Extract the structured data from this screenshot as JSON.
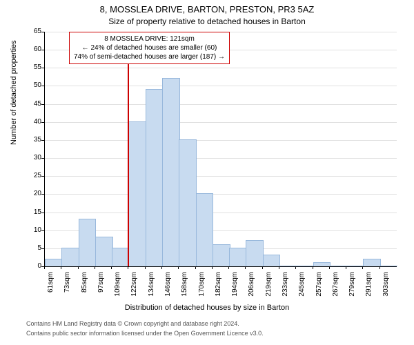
{
  "chart": {
    "type": "histogram",
    "title_line1": "8, MOSSLEA DRIVE, BARTON, PRESTON, PR3 5AZ",
    "title_line2": "Size of property relative to detached houses in Barton",
    "xlabel": "Distribution of detached houses by size in Barton",
    "ylabel": "Number of detached properties",
    "background_color": "#ffffff",
    "grid_color": "#e0e0e0",
    "axis_color": "#000000",
    "bar_color": "#c8dbf0",
    "bar_border_color": "#98b8dc",
    "ylim": [
      0,
      65
    ],
    "ytick_step": 5,
    "yticks": [
      0,
      5,
      10,
      15,
      20,
      25,
      30,
      35,
      40,
      45,
      50,
      55,
      60,
      65
    ],
    "xtick_labels": [
      "61sqm",
      "73sqm",
      "85sqm",
      "97sqm",
      "109sqm",
      "122sqm",
      "134sqm",
      "146sqm",
      "158sqm",
      "170sqm",
      "182sqm",
      "194sqm",
      "206sqm",
      "219sqm",
      "233sqm",
      "245sqm",
      "257sqm",
      "267sqm",
      "279sqm",
      "291sqm",
      "303sqm"
    ],
    "values": [
      2,
      5,
      13,
      8,
      5,
      40,
      49,
      52,
      35,
      20,
      6,
      5,
      7,
      3,
      0,
      0,
      1,
      0,
      0,
      2,
      0
    ],
    "reference_line": {
      "position_label": "122sqm",
      "color": "#cc0000"
    },
    "annotation": {
      "line1": "8 MOSSLEA DRIVE: 121sqm",
      "line2": "← 24% of detached houses are smaller (60)",
      "line3": "74% of semi-detached houses are larger (187) →",
      "border_color": "#cc0000"
    },
    "footer1": "Contains HM Land Registry data © Crown copyright and database right 2024.",
    "footer2": "Contains public sector information licensed under the Open Government Licence v3.0.",
    "title_fontsize": 13,
    "subtitle_fontsize": 12,
    "label_fontsize": 11,
    "tick_fontsize": 10,
    "footer_fontsize": 9
  }
}
